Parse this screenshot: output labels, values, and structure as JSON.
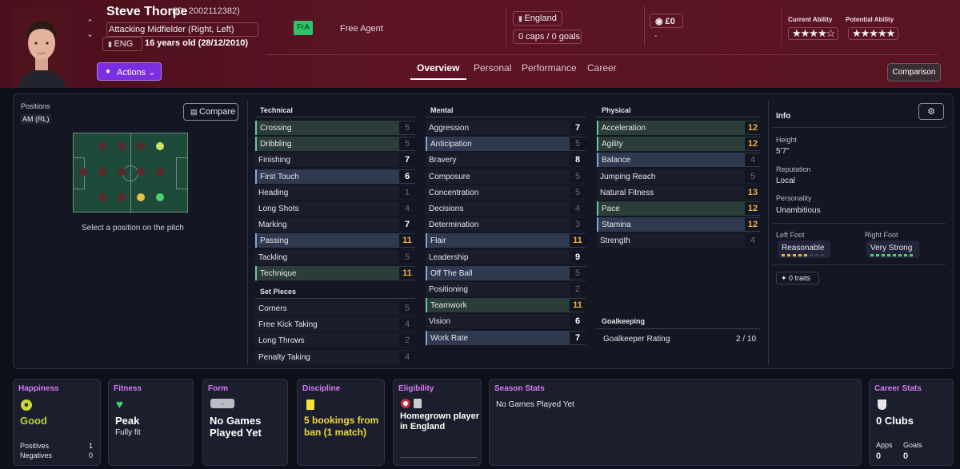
{
  "header": {
    "name": "Steve Thorpe",
    "id": "(ID: 2002112382)",
    "position": "Attacking Midfielder (Right, Left)",
    "nation_code": "ENG",
    "age": "16 years old (28/12/2010)",
    "badge": "FrA",
    "contract": "Free Agent",
    "nation": "England",
    "caps": "0 caps / 0 goals",
    "value": "£0",
    "value_sub": "-",
    "current_ability_label": "Current Ability",
    "potential_ability_label": "Potential Ability",
    "current_ability_stars": "★★★★☆",
    "potential_ability_stars": "★★★★★",
    "actions_label": "Actions",
    "comparison_label": "Comparison",
    "tabs": [
      "Overview",
      "Personal",
      "Performance",
      "Career"
    ]
  },
  "positions": {
    "label": "Positions",
    "current": "AM (RL)",
    "compare_label": "Compare",
    "hint": "Select a position on the pitch"
  },
  "technical": {
    "title": "Technical",
    "attrs": [
      {
        "name": "Crossing",
        "value": "5"
      },
      {
        "name": "Dribbling",
        "value": "5"
      },
      {
        "name": "Finishing",
        "value": "7"
      },
      {
        "name": "First Touch",
        "value": "6"
      },
      {
        "name": "Heading",
        "value": "1"
      },
      {
        "name": "Long Shots",
        "value": "4"
      },
      {
        "name": "Marking",
        "value": "7"
      },
      {
        "name": "Passing",
        "value": "11"
      },
      {
        "name": "Tackling",
        "value": "5"
      },
      {
        "name": "Technique",
        "value": "11"
      }
    ]
  },
  "set_pieces": {
    "title": "Set Pieces",
    "attrs": [
      {
        "name": "Corners",
        "value": "5"
      },
      {
        "name": "Free Kick Taking",
        "value": "4"
      },
      {
        "name": "Long Throws",
        "value": "2"
      },
      {
        "name": "Penalty Taking",
        "value": "4"
      }
    ]
  },
  "mental": {
    "title": "Mental",
    "attrs": [
      {
        "name": "Aggression",
        "value": "7"
      },
      {
        "name": "Anticipation",
        "value": "5"
      },
      {
        "name": "Bravery",
        "value": "8"
      },
      {
        "name": "Composure",
        "value": "5"
      },
      {
        "name": "Concentration",
        "value": "5"
      },
      {
        "name": "Decisions",
        "value": "4"
      },
      {
        "name": "Determination",
        "value": "3"
      },
      {
        "name": "Flair",
        "value": "11"
      },
      {
        "name": "Leadership",
        "value": "9"
      },
      {
        "name": "Off The Ball",
        "value": "5"
      },
      {
        "name": "Positioning",
        "value": "2"
      },
      {
        "name": "Teamwork",
        "value": "11"
      },
      {
        "name": "Vision",
        "value": "6"
      },
      {
        "name": "Work Rate",
        "value": "7"
      }
    ]
  },
  "physical": {
    "title": "Physical",
    "attrs": [
      {
        "name": "Acceleration",
        "value": "12"
      },
      {
        "name": "Agility",
        "value": "12"
      },
      {
        "name": "Balance",
        "value": "4"
      },
      {
        "name": "Jumping Reach",
        "value": "5"
      },
      {
        "name": "Natural Fitness",
        "value": "13"
      },
      {
        "name": "Pace",
        "value": "12"
      },
      {
        "name": "Stamina",
        "value": "12"
      },
      {
        "name": "Strength",
        "value": "4"
      }
    ]
  },
  "goalkeeping": {
    "title": "Goalkeeping",
    "rating_label": "Goalkeeper Rating",
    "rating_value": "2 / 10"
  },
  "info": {
    "title": "Info",
    "height_label": "Height",
    "height": "5'7\"",
    "reputation_label": "Reputation",
    "reputation": "Local",
    "personality_label": "Personality",
    "personality": "Unambitious",
    "left_foot_label": "Left Foot",
    "left_foot": "Reasonable",
    "right_foot_label": "Right Foot",
    "right_foot": "Very Strong",
    "traits": "0 traits",
    "colors": {
      "left_foot_bar": "#e5b63b",
      "right_foot_bar": "#4ad16f"
    }
  },
  "cards": {
    "happiness": {
      "title": "Happiness",
      "value": "Good",
      "positives_label": "Positives",
      "positives": "1",
      "negatives_label": "Negatives",
      "negatives": "0"
    },
    "fitness": {
      "title": "Fitness",
      "value": "Peak",
      "sub": "Fully fit"
    },
    "form": {
      "title": "Form",
      "badge": "-",
      "value": "No Games Played Yet"
    },
    "discipline": {
      "title": "Discipline",
      "value": "5 bookings from ban (1 match)"
    },
    "eligibility": {
      "title": "Eligibility",
      "value": "Homegrown player in England"
    },
    "season": {
      "title": "Season Stats",
      "value": "No Games Played Yet"
    },
    "career": {
      "title": "Career Stats",
      "value": "0 Clubs",
      "apps_label": "Apps",
      "apps": "0",
      "goals_label": "Goals",
      "goals": "0"
    }
  }
}
